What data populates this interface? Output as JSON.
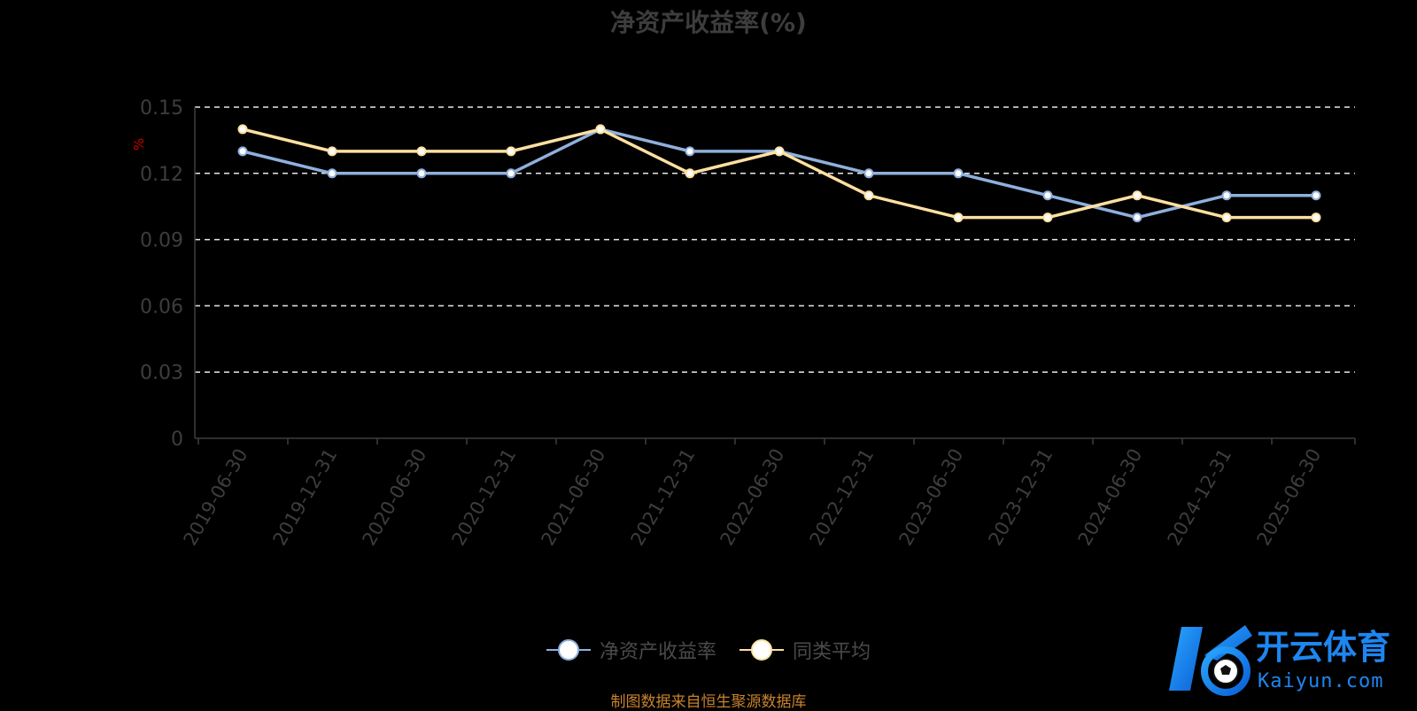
{
  "chart_data": {
    "type": "line",
    "title": "净资产收益率(%)",
    "ylabel": "%",
    "xlabel": "",
    "categories": [
      "2019-06-30",
      "2019-12-31",
      "2020-06-30",
      "2020-12-31",
      "2021-06-30",
      "2021-12-31",
      "2022-06-30",
      "2022-12-31",
      "2023-06-30",
      "2023-12-31",
      "2024-06-30",
      "2024-12-31",
      "2025-06-30"
    ],
    "series": [
      {
        "name": "净资产收益率",
        "color": "#8fb0dd",
        "values": [
          0.13,
          0.12,
          0.12,
          0.12,
          0.14,
          0.13,
          0.13,
          0.12,
          0.12,
          0.11,
          0.1,
          0.11,
          0.11
        ]
      },
      {
        "name": "同类平均",
        "color": "#ffe0a0",
        "values": [
          0.14,
          0.13,
          0.13,
          0.13,
          0.14,
          0.12,
          0.13,
          0.11,
          0.1,
          0.1,
          0.11,
          0.1,
          0.1
        ]
      }
    ],
    "ylim": [
      0,
      0.15
    ],
    "yticks": [
      "0",
      "0.03",
      "0.06",
      "0.09",
      "0.12",
      "0.15"
    ],
    "grid": true,
    "legend_position": "bottom"
  },
  "source_note": "制图数据来自恒生聚源数据库",
  "watermark": {
    "brand": "开云体育",
    "domain": "Kaiyun.com"
  }
}
